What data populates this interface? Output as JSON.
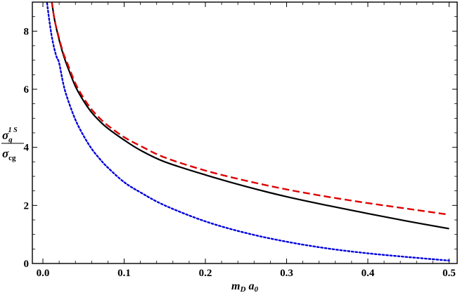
{
  "chart_data": {
    "type": "line",
    "title": "",
    "xlabel": {
      "main": "m",
      "sub1": "D",
      "mid": " a",
      "sub2": "0"
    },
    "ylabel": {
      "num_main": "σ",
      "num_sub": "g",
      "num_sup": "1 S",
      "den_main": "σ",
      "den_sub": "cg"
    },
    "xlim": [
      -0.013,
      0.51
    ],
    "ylim": [
      0,
      9
    ],
    "x_ticks": [
      0.0,
      0.1,
      0.2,
      0.3,
      0.4,
      0.5
    ],
    "x_tick_labels": [
      "0.0",
      "0.1",
      "0.2",
      "0.3",
      "0.4",
      "0.5"
    ],
    "y_ticks": [
      0,
      2,
      4,
      6,
      8
    ],
    "y_tick_labels": [
      "0",
      "2",
      "4",
      "6",
      "8"
    ],
    "grid": false,
    "legend": "none",
    "x": [
      0.009,
      0.012,
      0.015,
      0.02,
      0.025,
      0.03,
      0.04,
      0.05,
      0.06,
      0.07,
      0.08,
      0.1,
      0.12,
      0.15,
      0.2,
      0.25,
      0.3,
      0.35,
      0.4,
      0.45,
      0.5
    ],
    "series": [
      {
        "color": "#000000",
        "style": "solid",
        "values": [
          9.4,
          8.8,
          8.3,
          7.7,
          7.2,
          6.8,
          6.1,
          5.6,
          5.2,
          4.9,
          4.65,
          4.25,
          3.9,
          3.5,
          3.05,
          2.65,
          2.3,
          2.0,
          1.72,
          1.45,
          1.2
        ]
      },
      {
        "color": "#dd0000",
        "style": "dashed",
        "values": [
          9.4,
          8.8,
          8.3,
          7.75,
          7.25,
          6.9,
          6.2,
          5.7,
          5.3,
          5.0,
          4.75,
          4.35,
          4.05,
          3.65,
          3.2,
          2.85,
          2.55,
          2.3,
          2.08,
          1.88,
          1.68
        ]
      },
      {
        "color": "#0000dd",
        "style": "dotted",
        "values": [
          null,
          null,
          null,
          6.9,
          6.2,
          5.7,
          4.95,
          4.4,
          3.95,
          3.6,
          3.3,
          2.8,
          2.45,
          2.0,
          1.45,
          1.05,
          0.75,
          0.52,
          0.35,
          0.22,
          0.1
        ]
      }
    ],
    "extra_points": {
      "blue_start": {
        "x": [
          0.003,
          0.005,
          0.007,
          0.009,
          0.011,
          0.014,
          0.017
        ],
        "y": [
          9.5,
          9.0,
          8.55,
          8.15,
          7.8,
          7.4,
          7.1
        ]
      }
    }
  }
}
